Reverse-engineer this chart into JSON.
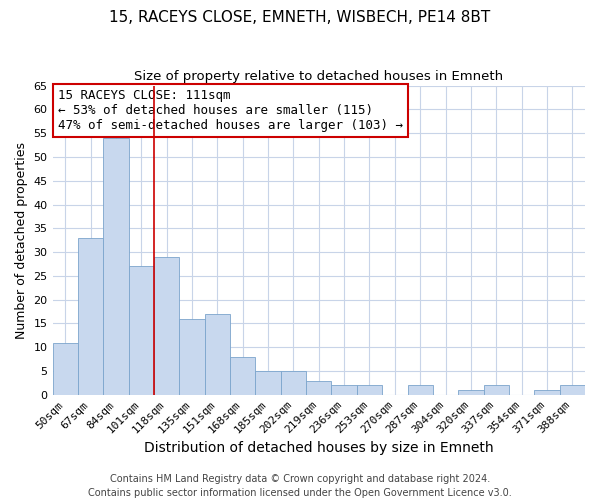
{
  "title": "15, RACEYS CLOSE, EMNETH, WISBECH, PE14 8BT",
  "subtitle": "Size of property relative to detached houses in Emneth",
  "xlabel": "Distribution of detached houses by size in Emneth",
  "ylabel": "Number of detached properties",
  "categories": [
    "50sqm",
    "67sqm",
    "84sqm",
    "101sqm",
    "118sqm",
    "135sqm",
    "151sqm",
    "168sqm",
    "185sqm",
    "202sqm",
    "219sqm",
    "236sqm",
    "253sqm",
    "270sqm",
    "287sqm",
    "304sqm",
    "320sqm",
    "337sqm",
    "354sqm",
    "371sqm",
    "388sqm"
  ],
  "values": [
    11,
    33,
    54,
    27,
    29,
    16,
    17,
    8,
    5,
    5,
    3,
    2,
    2,
    0,
    2,
    0,
    1,
    2,
    0,
    1,
    2
  ],
  "bar_color": "#c8d8ee",
  "bar_edge_color": "#7ba4cc",
  "ylim": [
    0,
    65
  ],
  "yticks": [
    0,
    5,
    10,
    15,
    20,
    25,
    30,
    35,
    40,
    45,
    50,
    55,
    60,
    65
  ],
  "annotation_box_text": "15 RACEYS CLOSE: 111sqm\n← 53% of detached houses are smaller (115)\n47% of semi-detached houses are larger (103) →",
  "annotation_box_color": "#ffffff",
  "annotation_box_edge_color": "#cc0000",
  "vline_color": "#cc0000",
  "vline_x": 3.5,
  "footer_line1": "Contains HM Land Registry data © Crown copyright and database right 2024.",
  "footer_line2": "Contains public sector information licensed under the Open Government Licence v3.0.",
  "background_color": "#ffffff",
  "grid_color": "#c8d4e8",
  "title_fontsize": 11,
  "subtitle_fontsize": 9.5,
  "xlabel_fontsize": 10,
  "ylabel_fontsize": 9,
  "tick_fontsize": 8,
  "annotation_fontsize": 9,
  "footer_fontsize": 7
}
